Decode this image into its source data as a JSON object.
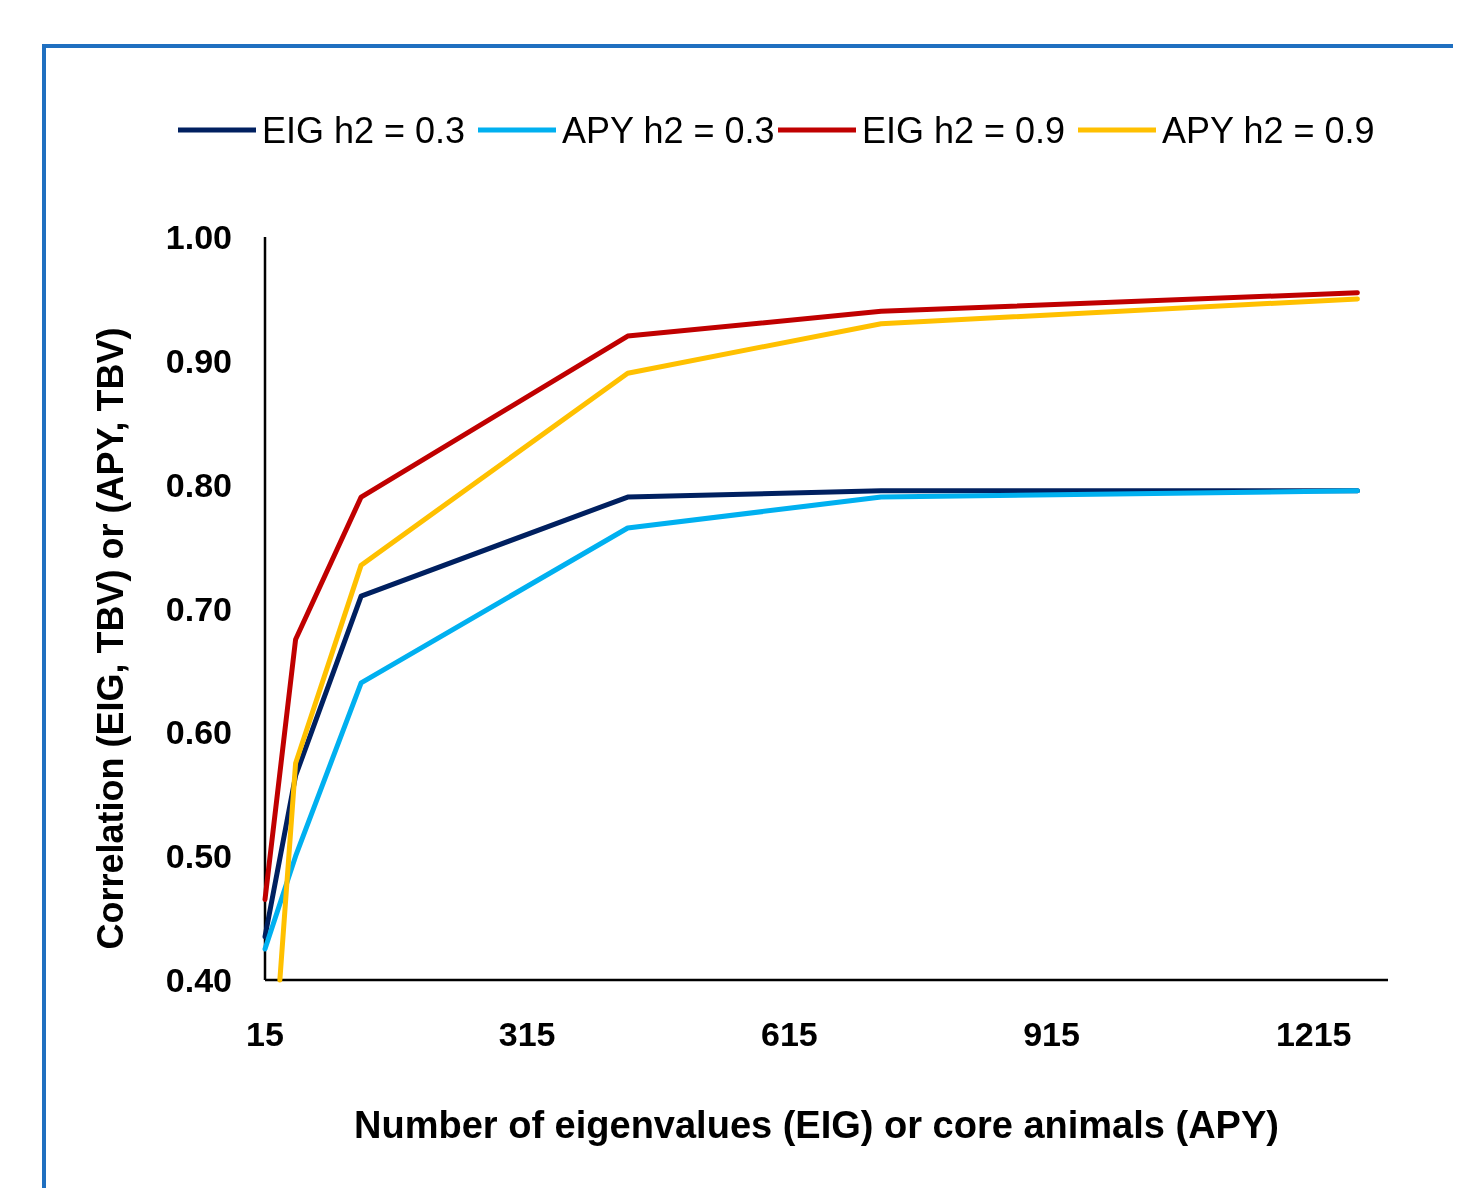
{
  "chart_data": {
    "type": "line",
    "xlabel": "Number of eigenvalues (EIG) or core animals (APY)",
    "ylabel": "Correlation (EIG, TBV) or (APY, TBV)",
    "xlim": [
      15,
      1300
    ],
    "xticks": [
      15,
      315,
      615,
      915,
      1215
    ],
    "ylim": [
      0.4,
      1.0
    ],
    "yticks": [
      {
        "value": 0.4,
        "label": "0.40"
      },
      {
        "value": 0.5,
        "label": "0.50"
      },
      {
        "value": 0.6,
        "label": "0.60"
      },
      {
        "value": 0.7,
        "label": "0.70"
      },
      {
        "value": 0.8,
        "label": "0.80"
      },
      {
        "value": 0.9,
        "label": "0.90"
      },
      {
        "value": 1.0,
        "label": "1.00"
      }
    ],
    "grid": false,
    "legend": "top",
    "marker": "none",
    "line_style": "solid",
    "series": [
      {
        "name": "EIG h2 = 0.3",
        "color": "#002060",
        "x": [
          15,
          50,
          125,
          430,
          720,
          1265
        ],
        "values": [
          0.435,
          0.565,
          0.71,
          0.79,
          0.795,
          0.795
        ]
      },
      {
        "name": "APY h2 = 0.3",
        "color": "#00b0f0",
        "x": [
          15,
          50,
          125,
          430,
          720,
          1265
        ],
        "values": [
          0.425,
          0.5,
          0.64,
          0.765,
          0.79,
          0.795
        ]
      },
      {
        "name": "EIG h2 = 0.9",
        "color": "#c00000",
        "x": [
          15,
          50,
          125,
          430,
          720,
          1265
        ],
        "values": [
          0.465,
          0.675,
          0.79,
          0.92,
          0.94,
          0.955
        ]
      },
      {
        "name": "APY h2 = 0.9",
        "color": "#ffc000",
        "x": [
          32,
          50,
          125,
          430,
          720,
          1265
        ],
        "values": [
          0.4,
          0.575,
          0.735,
          0.89,
          0.93,
          0.95
        ]
      }
    ]
  }
}
